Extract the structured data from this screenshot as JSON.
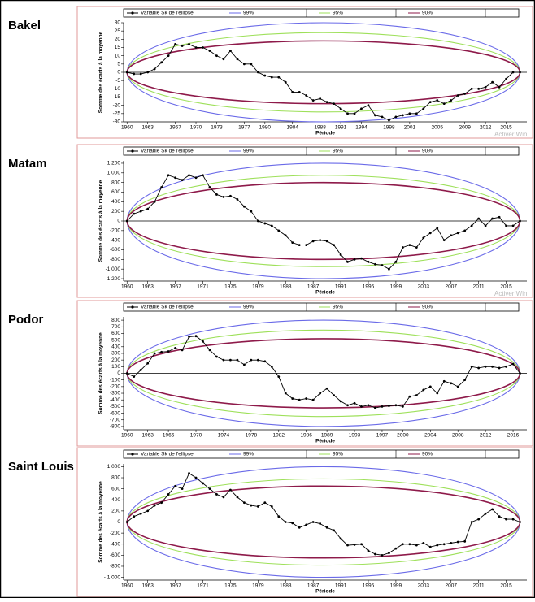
{
  "chart_data": [
    {
      "type": "line",
      "title": "Bakel",
      "xlabel": "Période",
      "ylabel": "Somme des écarts à la moyenne",
      "watermark": "Activer Win",
      "xlim": [
        1959.5,
        2018
      ],
      "xticks": [
        1960,
        1963,
        1967,
        1970,
        1973,
        1977,
        1980,
        1984,
        1988,
        1991,
        1994,
        1998,
        2001,
        2005,
        2009,
        2012,
        2015
      ],
      "ylim": [
        -30,
        30
      ],
      "yticks": [
        -30,
        -25,
        -20,
        -15,
        -10,
        -5,
        0,
        5,
        10,
        15,
        20,
        25,
        30
      ],
      "x": [
        1960,
        1961,
        1962,
        1963,
        1964,
        1965,
        1966,
        1967,
        1968,
        1969,
        1970,
        1971,
        1972,
        1973,
        1974,
        1975,
        1976,
        1977,
        1978,
        1979,
        1980,
        1981,
        1982,
        1983,
        1984,
        1985,
        1986,
        1987,
        1988,
        1989,
        1990,
        1991,
        1992,
        1993,
        1994,
        1995,
        1996,
        1997,
        1998,
        1999,
        2000,
        2001,
        2002,
        2003,
        2004,
        2005,
        2006,
        2007,
        2008,
        2009,
        2010,
        2011,
        2012,
        2013,
        2014,
        2015,
        2016,
        2017
      ],
      "series": [
        {
          "name": "Variable Sk de l'ellipse",
          "color": "#000000",
          "values": [
            0,
            -1,
            -1,
            0,
            2,
            6,
            10,
            17,
            16,
            17,
            15,
            15,
            13,
            10,
            8,
            13,
            8,
            5,
            5,
            0,
            -2,
            -3,
            -3,
            -6,
            -12,
            -12,
            -14,
            -17,
            -16,
            -18,
            -19,
            -22,
            -25,
            -25,
            -22,
            -20,
            -26,
            -27,
            -29,
            -27,
            -26,
            -25,
            -25,
            -22,
            -18,
            -17,
            -19,
            -17,
            -14,
            -13,
            -10,
            -10,
            -9,
            -6,
            -9,
            -4,
            0,
            0
          ]
        },
        {
          "name": "99%",
          "color": "#6a6ae8",
          "semi_axis": 30
        },
        {
          "name": "95%",
          "color": "#9ee05a",
          "semi_axis": 24
        },
        {
          "name": "90%",
          "color": "#8e1a4a",
          "semi_axis": 19
        }
      ]
    },
    {
      "type": "line",
      "title": "Matam",
      "xlabel": "Période",
      "ylabel": "Somme des écarts à la moyenne",
      "watermark": "Activer Win",
      "xlim": [
        1959.5,
        2018
      ],
      "xticks": [
        1960,
        1963,
        1967,
        1971,
        1975,
        1979,
        1983,
        1987,
        1991,
        1995,
        1999,
        2003,
        2007,
        2011,
        2015
      ],
      "ylim": [
        -1250,
        1250
      ],
      "yticks": [
        {
          "value": -1200,
          "label": "-1 200"
        },
        {
          "value": -1000,
          "label": "-1 000"
        },
        -800,
        -600,
        -400,
        -200,
        0,
        200,
        400,
        600,
        800,
        {
          "value": 1000,
          "label": "1 000"
        },
        {
          "value": 1200,
          "label": "1 200"
        }
      ],
      "x": [
        1960,
        1961,
        1962,
        1963,
        1964,
        1965,
        1966,
        1967,
        1968,
        1969,
        1970,
        1971,
        1972,
        1973,
        1974,
        1975,
        1976,
        1977,
        1978,
        1979,
        1980,
        1981,
        1982,
        1983,
        1984,
        1985,
        1986,
        1987,
        1988,
        1989,
        1990,
        1991,
        1992,
        1993,
        1994,
        1995,
        1996,
        1997,
        1998,
        1999,
        2000,
        2001,
        2002,
        2003,
        2004,
        2005,
        2006,
        2007,
        2008,
        2009,
        2010,
        2011,
        2012,
        2013,
        2014,
        2015,
        2016,
        2017
      ],
      "series": [
        {
          "name": "Variable Sk de l'ellipse",
          "color": "#000000",
          "values": [
            0,
            150,
            200,
            250,
            400,
            700,
            950,
            900,
            850,
            950,
            900,
            950,
            700,
            550,
            500,
            520,
            450,
            300,
            200,
            0,
            -50,
            -100,
            -200,
            -300,
            -450,
            -500,
            -500,
            -420,
            -400,
            -420,
            -500,
            -700,
            -850,
            -800,
            -780,
            -850,
            -900,
            -920,
            -1000,
            -850,
            -550,
            -500,
            -550,
            -350,
            -250,
            -150,
            -400,
            -300,
            -250,
            -200,
            -100,
            50,
            -100,
            50,
            80,
            -100,
            -100,
            0
          ]
        },
        {
          "name": "99%",
          "color": "#6a6ae8",
          "semi_axis": 1200
        },
        {
          "name": "95%",
          "color": "#9ee05a",
          "semi_axis": 950
        },
        {
          "name": "90%",
          "color": "#8e1a4a",
          "semi_axis": 800
        }
      ]
    },
    {
      "type": "line",
      "title": "Podor",
      "xlabel": "Période",
      "ylabel": "Somme des écarts à la moyenne",
      "xlim": [
        1959.5,
        2018
      ],
      "xticks": [
        1960,
        1963,
        1966,
        1970,
        1974,
        1978,
        1982,
        1986,
        1989,
        1993,
        1997,
        2000,
        2004,
        2008,
        2012,
        2016
      ],
      "ylim": [
        -850,
        850
      ],
      "yticks": [
        -800,
        -700,
        -600,
        -500,
        -400,
        -300,
        -200,
        -100,
        0,
        100,
        200,
        300,
        400,
        500,
        600,
        700,
        800
      ],
      "x": [
        1960,
        1961,
        1962,
        1963,
        1964,
        1965,
        1966,
        1967,
        1968,
        1969,
        1970,
        1971,
        1972,
        1973,
        1974,
        1975,
        1976,
        1977,
        1978,
        1979,
        1980,
        1981,
        1982,
        1983,
        1984,
        1985,
        1986,
        1987,
        1988,
        1989,
        1990,
        1991,
        1992,
        1993,
        1994,
        1995,
        1996,
        1997,
        1998,
        1999,
        2000,
        2001,
        2002,
        2003,
        2004,
        2005,
        2006,
        2007,
        2008,
        2009,
        2010,
        2011,
        2012,
        2013,
        2014,
        2015,
        2016,
        2017
      ],
      "series": [
        {
          "name": "Variable Sk de l'ellipse",
          "color": "#000000",
          "values": [
            0,
            -50,
            50,
            150,
            300,
            320,
            330,
            380,
            350,
            550,
            560,
            480,
            350,
            250,
            200,
            200,
            200,
            130,
            200,
            200,
            180,
            100,
            -50,
            -300,
            -380,
            -400,
            -380,
            -400,
            -300,
            -230,
            -330,
            -420,
            -480,
            -450,
            -500,
            -480,
            -520,
            -500,
            -490,
            -480,
            -500,
            -350,
            -330,
            -250,
            -200,
            -300,
            -120,
            -150,
            -200,
            -100,
            100,
            80,
            100,
            100,
            80,
            100,
            140,
            0
          ]
        },
        {
          "name": "99%",
          "color": "#6a6ae8",
          "semi_axis": 800
        },
        {
          "name": "95%",
          "color": "#9ee05a",
          "semi_axis": 650
        },
        {
          "name": "90%",
          "color": "#8e1a4a",
          "semi_axis": 520
        }
      ]
    },
    {
      "type": "line",
      "title": "Saint Louis",
      "xlabel": "Période",
      "ylabel": "Somme des écarts à la moyenne",
      "xlim": [
        1959.5,
        2018
      ],
      "xticks": [
        1960,
        1963,
        1967,
        1971,
        1975,
        1979,
        1983,
        1987,
        1991,
        1995,
        1999,
        2003,
        2007,
        2011,
        2015
      ],
      "ylim": [
        -1050,
        1050
      ],
      "yticks": [
        {
          "value": -1000,
          "label": "- 1 000"
        },
        -800,
        -600,
        -400,
        -200,
        0,
        200,
        400,
        600,
        800,
        {
          "value": 1000,
          "label": "1 000"
        }
      ],
      "x": [
        1960,
        1961,
        1962,
        1963,
        1964,
        1965,
        1966,
        1967,
        1968,
        1969,
        1970,
        1971,
        1972,
        1973,
        1974,
        1975,
        1976,
        1977,
        1978,
        1979,
        1980,
        1981,
        1982,
        1983,
        1984,
        1985,
        1986,
        1987,
        1988,
        1989,
        1990,
        1991,
        1992,
        1993,
        1994,
        1995,
        1996,
        1997,
        1998,
        1999,
        2000,
        2001,
        2002,
        2003,
        2004,
        2005,
        2006,
        2007,
        2008,
        2009,
        2010,
        2011,
        2012,
        2013,
        2014,
        2015,
        2016,
        2017
      ],
      "series": [
        {
          "name": "Variable Sk de l'ellipse",
          "color": "#000000",
          "values": [
            0,
            100,
            150,
            200,
            300,
            350,
            500,
            650,
            600,
            880,
            800,
            700,
            600,
            500,
            450,
            580,
            450,
            350,
            300,
            280,
            350,
            280,
            100,
            0,
            -20,
            -100,
            -50,
            0,
            -30,
            -100,
            -150,
            -300,
            -420,
            -410,
            -400,
            -520,
            -580,
            -600,
            -560,
            -480,
            -400,
            -400,
            -420,
            -380,
            -450,
            -420,
            -400,
            -380,
            -360,
            -350,
            0,
            50,
            150,
            230,
            100,
            50,
            50,
            0
          ]
        },
        {
          "name": "99%",
          "color": "#6a6ae8",
          "semi_axis": 1000
        },
        {
          "name": "95%",
          "color": "#9ee05a",
          "semi_axis": 780
        },
        {
          "name": "90%",
          "color": "#8e1a4a",
          "semi_axis": 650
        }
      ]
    }
  ]
}
